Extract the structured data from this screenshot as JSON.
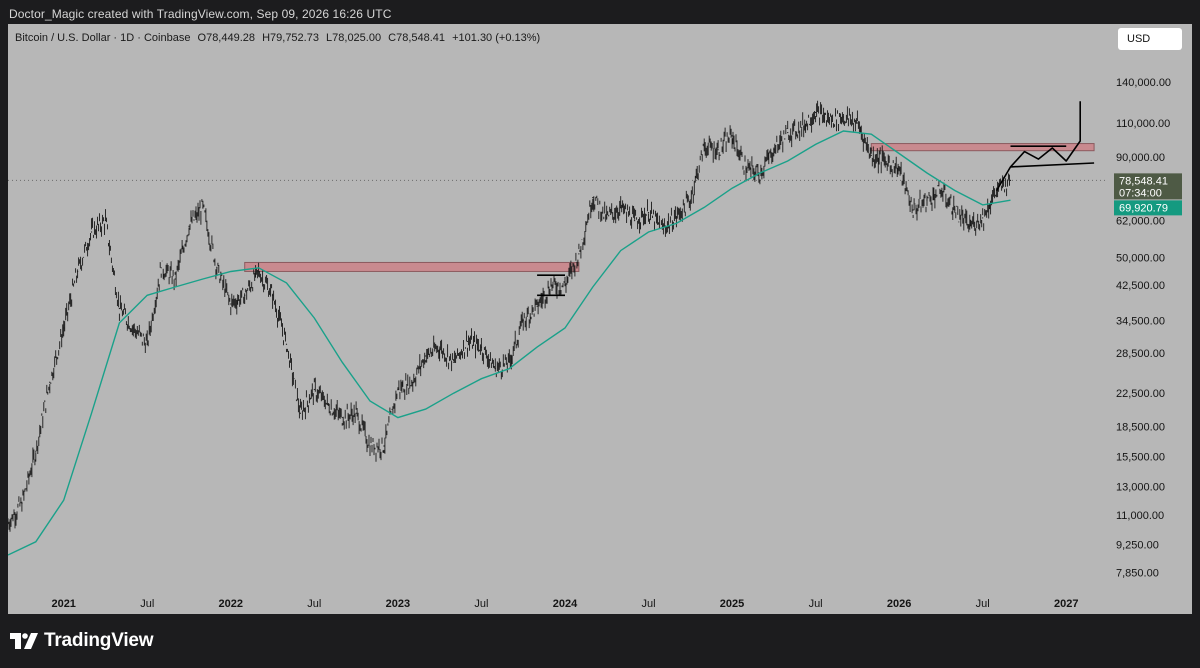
{
  "caption": "Doctor_Magic created with TradingView.com, Sep 09, 2026 16:26 UTC",
  "symbol": {
    "name": "Bitcoin / U.S. Dollar · 1D · Coinbase",
    "open": "O78,449.28",
    "high": "H79,752.73",
    "low": "L78,025.00",
    "close": "C78,548.41",
    "change": "+101.30 (+0.13%)"
  },
  "currency_button": "USD",
  "brand": "TradingView",
  "colors": {
    "background": "#b7b7b7",
    "candles": "#1a1a1a",
    "moving_average": "#1aa18a",
    "zone_fill": "#c98a8f",
    "price_tag": "#4e5a45",
    "ma_tag": "#149a80"
  },
  "chart_data": {
    "type": "line",
    "title": "Bitcoin / U.S. Dollar · 1D · Coinbase",
    "y_scale": "log",
    "y_axis_ticks": [
      140000,
      110000,
      90000,
      62000,
      50000,
      42500,
      34500,
      28500,
      22500,
      18500,
      15500,
      13000,
      11000,
      9250,
      7850
    ],
    "y_axis_labels": [
      "140,000.00",
      "110,000.00",
      "90,000.00",
      "62,000.00",
      "50,000.00",
      "42,500.00",
      "34,500.00",
      "28,500.00",
      "22,500.00",
      "18,500.00",
      "15,500.00",
      "13,000.00",
      "11,000.00",
      "9,250.00",
      "7,850.00"
    ],
    "x_axis_labels": [
      {
        "label": "2021",
        "date": "2021-01",
        "year": true
      },
      {
        "label": "Jul",
        "date": "2021-07",
        "year": false
      },
      {
        "label": "2022",
        "date": "2022-01",
        "year": true
      },
      {
        "label": "Jul",
        "date": "2022-07",
        "year": false
      },
      {
        "label": "2023",
        "date": "2023-01",
        "year": true
      },
      {
        "label": "Jul",
        "date": "2023-07",
        "year": false
      },
      {
        "label": "2024",
        "date": "2024-01",
        "year": true
      },
      {
        "label": "Jul",
        "date": "2024-07",
        "year": false
      },
      {
        "label": "2025",
        "date": "2025-01",
        "year": true
      },
      {
        "label": "Jul",
        "date": "2025-07",
        "year": false
      },
      {
        "label": "2026",
        "date": "2026-01",
        "year": true
      },
      {
        "label": "Jul",
        "date": "2026-07",
        "year": false
      },
      {
        "label": "2027",
        "date": "2027-01",
        "year": true
      }
    ],
    "x_range": [
      "2020-09",
      "2027-04"
    ],
    "y_range": [
      7000,
      165000
    ],
    "series": [
      {
        "name": "BTCUSD",
        "style": "candles",
        "points": [
          [
            "2020-09",
            10500
          ],
          [
            "2020-10",
            11800
          ],
          [
            "2020-11",
            16000
          ],
          [
            "2020-12",
            24000
          ],
          [
            "2021-01",
            33000
          ],
          [
            "2021-02",
            46000
          ],
          [
            "2021-03",
            58000
          ],
          [
            "2021-04",
            62000
          ],
          [
            "2021-05",
            37000
          ],
          [
            "2021-06",
            33000
          ],
          [
            "2021-07",
            30000
          ],
          [
            "2021-08",
            47000
          ],
          [
            "2021-09",
            44000
          ],
          [
            "2021-10",
            60000
          ],
          [
            "2021-11",
            67000
          ],
          [
            "2021-12",
            47000
          ],
          [
            "2022-01",
            38000
          ],
          [
            "2022-02",
            40000
          ],
          [
            "2022-03",
            46000
          ],
          [
            "2022-04",
            40000
          ],
          [
            "2022-05",
            30000
          ],
          [
            "2022-06",
            20000
          ],
          [
            "2022-07",
            23000
          ],
          [
            "2022-08",
            21000
          ],
          [
            "2022-09",
            19500
          ],
          [
            "2022-10",
            20000
          ],
          [
            "2022-11",
            16500
          ],
          [
            "2022-12",
            16500
          ],
          [
            "2023-01",
            23000
          ],
          [
            "2023-02",
            24000
          ],
          [
            "2023-03",
            28000
          ],
          [
            "2023-04",
            29500
          ],
          [
            "2023-05",
            27000
          ],
          [
            "2023-06",
            30500
          ],
          [
            "2023-07",
            29500
          ],
          [
            "2023-08",
            26000
          ],
          [
            "2023-09",
            27000
          ],
          [
            "2023-10",
            34500
          ],
          [
            "2023-11",
            37500
          ],
          [
            "2023-12",
            42500
          ],
          [
            "2024-01",
            42500
          ],
          [
            "2024-02",
            51000
          ],
          [
            "2024-03",
            71000
          ],
          [
            "2024-04",
            63000
          ],
          [
            "2024-05",
            67000
          ],
          [
            "2024-06",
            62000
          ],
          [
            "2024-07",
            65000
          ],
          [
            "2024-08",
            59000
          ],
          [
            "2024-09",
            63500
          ],
          [
            "2024-10",
            70000
          ],
          [
            "2024-11",
            96000
          ],
          [
            "2024-12",
            94000
          ],
          [
            "2025-01",
            102000
          ],
          [
            "2025-02",
            84000
          ],
          [
            "2025-03",
            82000
          ],
          [
            "2025-04",
            94000
          ],
          [
            "2025-05",
            104000
          ],
          [
            "2025-06",
            107000
          ],
          [
            "2025-07",
            117000
          ],
          [
            "2025-08",
            112000
          ],
          [
            "2025-09",
            114000
          ],
          [
            "2025-10",
            110000
          ],
          [
            "2025-11",
            91000
          ],
          [
            "2025-12",
            88000
          ],
          [
            "2026-01",
            84000
          ],
          [
            "2026-02",
            66000
          ],
          [
            "2026-03",
            70000
          ],
          [
            "2026-04",
            74000
          ],
          [
            "2026-05",
            66000
          ],
          [
            "2026-06",
            60000
          ],
          [
            "2026-07",
            63000
          ],
          [
            "2026-08",
            74000
          ],
          [
            "2026-09",
            78548
          ]
        ]
      },
      {
        "name": "MA",
        "style": "line",
        "points": [
          [
            "2020-09",
            8700
          ],
          [
            "2020-11",
            9400
          ],
          [
            "2021-01",
            12000
          ],
          [
            "2021-03",
            20000
          ],
          [
            "2021-05",
            34000
          ],
          [
            "2021-07",
            40000
          ],
          [
            "2021-09",
            42000
          ],
          [
            "2021-11",
            44000
          ],
          [
            "2022-01",
            46000
          ],
          [
            "2022-03",
            47000
          ],
          [
            "2022-05",
            43000
          ],
          [
            "2022-07",
            35000
          ],
          [
            "2022-09",
            27000
          ],
          [
            "2022-11",
            21500
          ],
          [
            "2023-01",
            19500
          ],
          [
            "2023-03",
            20500
          ],
          [
            "2023-05",
            22500
          ],
          [
            "2023-07",
            24500
          ],
          [
            "2023-09",
            26000
          ],
          [
            "2023-11",
            29500
          ],
          [
            "2024-01",
            33000
          ],
          [
            "2024-03",
            42000
          ],
          [
            "2024-05",
            52000
          ],
          [
            "2024-07",
            58000
          ],
          [
            "2024-09",
            61000
          ],
          [
            "2024-11",
            67000
          ],
          [
            "2025-01",
            75000
          ],
          [
            "2025-03",
            82000
          ],
          [
            "2025-05",
            88000
          ],
          [
            "2025-07",
            97000
          ],
          [
            "2025-09",
            105000
          ],
          [
            "2025-11",
            103000
          ],
          [
            "2026-01",
            92000
          ],
          [
            "2026-03",
            82000
          ],
          [
            "2026-05",
            74000
          ],
          [
            "2026-07",
            68000
          ],
          [
            "2026-09",
            69920
          ]
        ]
      }
    ],
    "zones": [
      {
        "from": "2022-02",
        "to": "2024-02",
        "low": 46000,
        "high": 48500
      },
      {
        "from": "2025-11",
        "to": "2027-03",
        "low": 93500,
        "high": 97500
      }
    ],
    "drawings": [
      {
        "points": [
          [
            "2023-11",
            45000
          ],
          [
            "2024-01",
            45000
          ]
        ]
      },
      {
        "points": [
          [
            "2023-11",
            40000
          ],
          [
            "2024-01",
            40000
          ]
        ]
      },
      {
        "points": [
          [
            "2026-09",
            96000
          ],
          [
            "2027-01",
            96000
          ]
        ]
      },
      {
        "points": [
          [
            "2026-09",
            85000
          ],
          [
            "2027-03",
            87000
          ]
        ]
      },
      {
        "points": [
          [
            "2026-08",
            74000
          ],
          [
            "2026-09",
            85000
          ],
          [
            "2026-10",
            93000
          ],
          [
            "2026-11",
            89000
          ],
          [
            "2026-12",
            95000
          ],
          [
            "2027-01",
            88000
          ],
          [
            "2027-02",
            99000
          ],
          [
            "2027-02",
            125000
          ]
        ]
      }
    ],
    "price_tags": [
      {
        "value": 78548.41,
        "label": "78,548.41",
        "sublabel": "07:34:00",
        "role": "last_price"
      },
      {
        "value": 69920.79,
        "label": "69,920.79",
        "role": "moving_average"
      }
    ],
    "grid": false,
    "legend": "none"
  }
}
